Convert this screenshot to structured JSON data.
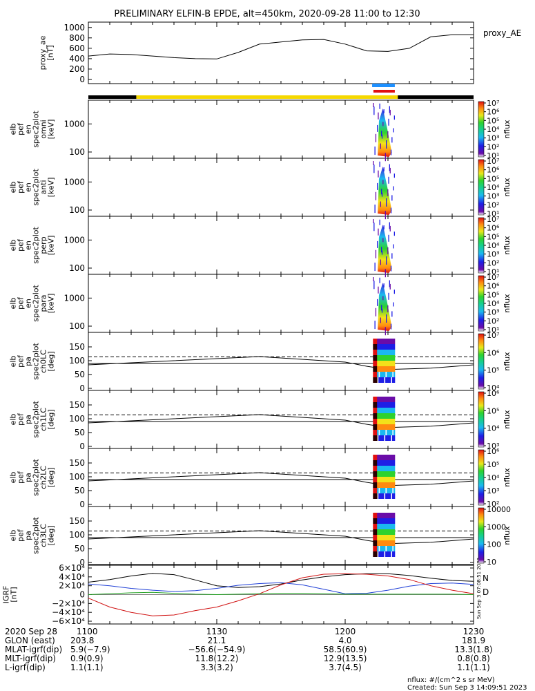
{
  "title": "PRELIMINARY ELFIN-B EPDE, alt=450km, 2020-09-28 11:00 to 12:30",
  "colors": {
    "line": "#000000",
    "state_black": "#000000",
    "state_yellow": "#f5d800",
    "region_blue": "#1e90ff",
    "region_red": "#e01010",
    "bz": "#000000",
    "by": "#1f3fd6",
    "bx": "#d01010",
    "bzero": "#20a020",
    "n_label": "#1f3fd6",
    "d_label": "#e01010"
  },
  "panels": {
    "ae": {
      "ylabel": "proxy_ae\n[nT]",
      "legend": "proxy_AE",
      "ticks": [
        "1000",
        "800",
        "600",
        "400",
        "200",
        "0"
      ]
    },
    "spec": [
      {
        "ylabel": "elb\npef\nen\nspec2plot\nomni\n[keV]",
        "ticks": [
          "1000",
          "100"
        ],
        "cb": [
          "10⁷",
          "10⁶",
          "10⁵",
          "10⁴",
          "10³",
          "10²",
          "10¹"
        ],
        "cblabel": "nflux"
      },
      {
        "ylabel": "elb\npef\nen\nspec2plot\nanti\n[keV]",
        "ticks": [
          "1000",
          "100"
        ],
        "cb": [
          "10⁷",
          "10⁶",
          "10⁵",
          "10⁴",
          "10³",
          "10²",
          "10¹"
        ],
        "cblabel": "nflux"
      },
      {
        "ylabel": "elb\npef\nen\nspec2plot\nperp\n[keV]",
        "ticks": [
          "1000",
          "100"
        ],
        "cb": [
          "10⁷",
          "10⁶",
          "10⁵",
          "10⁴",
          "10³",
          "10²",
          "10¹"
        ],
        "cblabel": "nflux"
      },
      {
        "ylabel": "elb\npef\nen\nspec2plot\npara\n[keV]",
        "ticks": [
          "1000",
          "100"
        ],
        "cb": [
          "10⁷",
          "10⁶",
          "10⁵",
          "10⁴",
          "10³",
          "10²",
          "10¹"
        ],
        "cblabel": "nflux"
      }
    ],
    "pa": [
      {
        "ylabel": "elb\npef\npa\nspec2plot\nch0LC\n[deg]",
        "ticks": [
          "150",
          "100",
          "50",
          "0"
        ],
        "cb": [
          "10⁷",
          "10⁶",
          "10⁵",
          "10⁴"
        ],
        "cblabel": "nflux"
      },
      {
        "ylabel": "elb\npef\npa\nspec2plot\nch1LC\n[deg]",
        "ticks": [
          "150",
          "100",
          "50",
          "0"
        ],
        "cb": [
          "10⁶",
          "10⁵",
          "10⁴",
          "10³"
        ],
        "cblabel": "nflux"
      },
      {
        "ylabel": "elb\npef\npa\nspec2plot\nch2LC\n[deg]",
        "ticks": [
          "150",
          "100",
          "50",
          "0"
        ],
        "cb": [
          "10⁶",
          "10⁵",
          "10⁴",
          "10³",
          "10²"
        ],
        "cblabel": "nflux"
      },
      {
        "ylabel": "elb\npef\npa\nspec2plot\nch3LC\n[deg]",
        "ticks": [
          "150",
          "100",
          "50",
          "0"
        ],
        "cb": [
          "10000",
          "1000",
          "100",
          "10"
        ],
        "cblabel": "nflux"
      }
    ],
    "igrf": {
      "ylabel": "IGRF\n[nT]",
      "ticks": [
        "6×10⁴",
        "4×10⁴",
        "2×10⁴",
        "0",
        "−2×10⁴",
        "−4×10⁴",
        "−6×10⁴"
      ],
      "n_label": "N",
      "d_label": "D",
      "side_text": "Sun Sep  3 07:08:51 2023"
    }
  },
  "footer": {
    "row_labels": [
      "2020 Sep 28",
      "GLON (east)",
      "MLAT-igrf(dip)",
      "MLT-igrf(dip)",
      "L-igrf(dip)"
    ],
    "columns": [
      {
        "time": "1100",
        "glon": "203.8",
        "mlat": "5.9(−7.9)",
        "mlt": "0.9(0.9)",
        "l": "1.1(1.1)"
      },
      {
        "time": "1130",
        "glon": "21.1",
        "mlat": "−56.6(−54.9)",
        "mlt": "11.8(12.2)",
        "l": "3.3(3.2)"
      },
      {
        "time": "1200",
        "glon": "4.0",
        "mlat": "58.5(60.9)",
        "mlt": "12.9(13.5)",
        "l": "3.7(4.5)"
      },
      {
        "time": "1230",
        "glon": "181.9",
        "mlat": "13.3(1.8)",
        "mlt": "0.8(0.8)",
        "l": "1.1(1.1)"
      }
    ],
    "units_note": "nflux: #/(cm^2 s sr MeV)",
    "created": "Created: Sun Sep  3 14:09:51 2023"
  },
  "chart_data": [
    {
      "type": "line",
      "name": "proxy_AE",
      "x_range": [
        "11:00",
        "12:30"
      ],
      "ylim": [
        0,
        1050
      ],
      "x_minutes": [
        0,
        5,
        10,
        20,
        25,
        30,
        35,
        40,
        45,
        50,
        55,
        60,
        65,
        70,
        75,
        80,
        85,
        90
      ],
      "values": [
        450,
        490,
        480,
        420,
        400,
        395,
        520,
        680,
        720,
        760,
        770,
        680,
        550,
        540,
        600,
        820,
        860,
        860
      ]
    },
    {
      "type": "bar",
      "name": "state_bar",
      "segments": [
        {
          "start_min": 0,
          "end_min": 11.2,
          "state": "black"
        },
        {
          "start_min": 11.2,
          "end_min": 72.3,
          "state": "yellow"
        },
        {
          "start_min": 72.3,
          "end_min": 90,
          "state": "black"
        }
      ],
      "regions": [
        {
          "start_min": 66.3,
          "end_min": 71.6,
          "color": "blue"
        },
        {
          "start_min": 66.6,
          "end_min": 71.6,
          "color": "red"
        }
      ]
    },
    {
      "type": "heatmap",
      "name": "energy spectrograms",
      "active_window_min": [
        66.3,
        71.5
      ],
      "ylim_keV": [
        60,
        7000
      ],
      "yscale": "log"
    },
    {
      "type": "line",
      "name": "pitch angle loss cone",
      "ylim": [
        0,
        180
      ],
      "solid_min": [
        0,
        20,
        40,
        60,
        65,
        70,
        80,
        90
      ],
      "solid_values": [
        85,
        100,
        115,
        95,
        80,
        68,
        73,
        85
      ],
      "dashed_level": 114,
      "solid_level": 90
    },
    {
      "type": "line",
      "name": "IGRF",
      "ylim": [
        -60000,
        60000
      ],
      "x_minutes": [
        0,
        5,
        10,
        15,
        20,
        25,
        30,
        35,
        40,
        45,
        50,
        55,
        60,
        65,
        70,
        75,
        80,
        85,
        90
      ],
      "series": [
        {
          "key": "bz",
          "values": [
            28000,
            34000,
            42000,
            48000,
            45000,
            33000,
            20000,
            16000,
            18000,
            24000,
            33000,
            40000,
            45000,
            47000,
            47000,
            43000,
            37000,
            32000,
            30000
          ]
        },
        {
          "key": "by",
          "values": [
            24000,
            20000,
            14000,
            10000,
            7000,
            9000,
            14000,
            21000,
            25000,
            27000,
            22000,
            12000,
            2000,
            3000,
            10000,
            19000,
            25000,
            26000,
            23000
          ]
        },
        {
          "key": "bx",
          "values": [
            -8000,
            -28000,
            -40000,
            -48000,
            -46000,
            -36000,
            -28000,
            -14000,
            2000,
            22000,
            38000,
            46000,
            47000,
            46000,
            42000,
            34000,
            20000,
            10000,
            2000
          ]
        },
        {
          "key": "bzero",
          "values": [
            0,
            2000,
            4000,
            5000,
            3000,
            1000,
            0,
            1000,
            2000,
            3000,
            3000,
            2000,
            1000,
            1000,
            1000,
            1000,
            1000,
            1000,
            0
          ]
        }
      ]
    }
  ]
}
